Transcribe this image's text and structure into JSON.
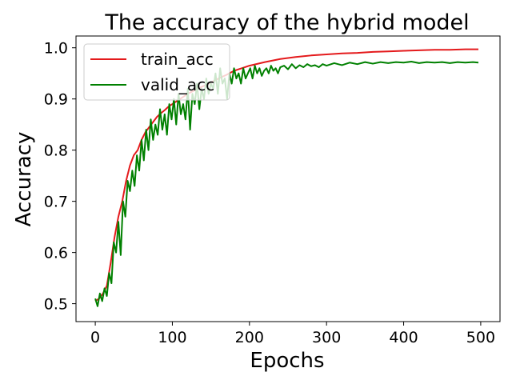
{
  "chart_data": {
    "type": "line",
    "title": "The accuracy of the hybrid model",
    "xlabel": "Epochs",
    "ylabel": "Accuracy",
    "xlim": [
      -25,
      525
    ],
    "ylim": [
      0.465,
      1.023
    ],
    "xticks": [
      0,
      100,
      200,
      300,
      400,
      500
    ],
    "xtick_labels": [
      "0",
      "100",
      "200",
      "300",
      "400",
      "500"
    ],
    "yticks": [
      0.5,
      0.6,
      0.7,
      0.8,
      0.9,
      1.0
    ],
    "ytick_labels": [
      "0.5",
      "0.6",
      "0.7",
      "0.8",
      "0.9",
      "1.0"
    ],
    "grid": false,
    "legend_position": "top-left",
    "series": [
      {
        "name": "train_acc",
        "color": "#e41a1c",
        "x": [
          0,
          5,
          10,
          15,
          20,
          25,
          30,
          35,
          40,
          45,
          50,
          55,
          60,
          65,
          70,
          75,
          80,
          85,
          90,
          95,
          100,
          110,
          120,
          130,
          140,
          150,
          160,
          170,
          180,
          190,
          200,
          220,
          240,
          260,
          280,
          300,
          320,
          340,
          360,
          380,
          400,
          420,
          440,
          460,
          480,
          497
        ],
        "values": [
          0.505,
          0.51,
          0.52,
          0.535,
          0.58,
          0.63,
          0.67,
          0.7,
          0.74,
          0.77,
          0.79,
          0.8,
          0.82,
          0.835,
          0.845,
          0.855,
          0.865,
          0.872,
          0.878,
          0.885,
          0.89,
          0.9,
          0.91,
          0.918,
          0.925,
          0.932,
          0.94,
          0.947,
          0.955,
          0.96,
          0.965,
          0.972,
          0.978,
          0.982,
          0.985,
          0.987,
          0.989,
          0.99,
          0.992,
          0.993,
          0.994,
          0.995,
          0.996,
          0.996,
          0.997,
          0.997
        ]
      },
      {
        "name": "valid_acc",
        "color": "#008000",
        "x": [
          0,
          3,
          6,
          9,
          12,
          15,
          18,
          21,
          24,
          27,
          30,
          33,
          36,
          39,
          42,
          45,
          48,
          51,
          54,
          57,
          60,
          63,
          66,
          69,
          72,
          75,
          78,
          81,
          84,
          87,
          90,
          93,
          96,
          99,
          102,
          105,
          108,
          111,
          114,
          117,
          120,
          123,
          126,
          129,
          132,
          135,
          138,
          141,
          144,
          147,
          150,
          153,
          156,
          159,
          162,
          165,
          168,
          171,
          174,
          177,
          180,
          183,
          186,
          189,
          192,
          195,
          198,
          201,
          204,
          207,
          210,
          213,
          216,
          219,
          222,
          225,
          228,
          231,
          234,
          237,
          240,
          245,
          250,
          255,
          260,
          265,
          270,
          275,
          280,
          285,
          290,
          295,
          300,
          310,
          320,
          330,
          340,
          350,
          360,
          370,
          380,
          390,
          400,
          410,
          420,
          430,
          440,
          450,
          460,
          470,
          480,
          490,
          497
        ],
        "values": [
          0.51,
          0.495,
          0.52,
          0.505,
          0.53,
          0.515,
          0.56,
          0.54,
          0.62,
          0.6,
          0.66,
          0.595,
          0.7,
          0.67,
          0.74,
          0.72,
          0.76,
          0.73,
          0.79,
          0.76,
          0.82,
          0.78,
          0.84,
          0.8,
          0.86,
          0.82,
          0.85,
          0.83,
          0.88,
          0.84,
          0.87,
          0.83,
          0.89,
          0.86,
          0.9,
          0.85,
          0.91,
          0.87,
          0.89,
          0.86,
          0.92,
          0.84,
          0.91,
          0.89,
          0.93,
          0.88,
          0.92,
          0.9,
          0.94,
          0.91,
          0.93,
          0.92,
          0.95,
          0.91,
          0.96,
          0.93,
          0.94,
          0.9,
          0.95,
          0.93,
          0.96,
          0.94,
          0.95,
          0.93,
          0.96,
          0.94,
          0.95,
          0.96,
          0.94,
          0.965,
          0.95,
          0.96,
          0.945,
          0.955,
          0.96,
          0.95,
          0.965,
          0.955,
          0.96,
          0.95,
          0.962,
          0.965,
          0.958,
          0.968,
          0.96,
          0.966,
          0.962,
          0.968,
          0.964,
          0.966,
          0.962,
          0.968,
          0.965,
          0.97,
          0.966,
          0.971,
          0.968,
          0.972,
          0.969,
          0.972,
          0.97,
          0.972,
          0.971,
          0.973,
          0.97,
          0.972,
          0.971,
          0.972,
          0.97,
          0.972,
          0.971,
          0.972,
          0.971
        ]
      }
    ]
  }
}
